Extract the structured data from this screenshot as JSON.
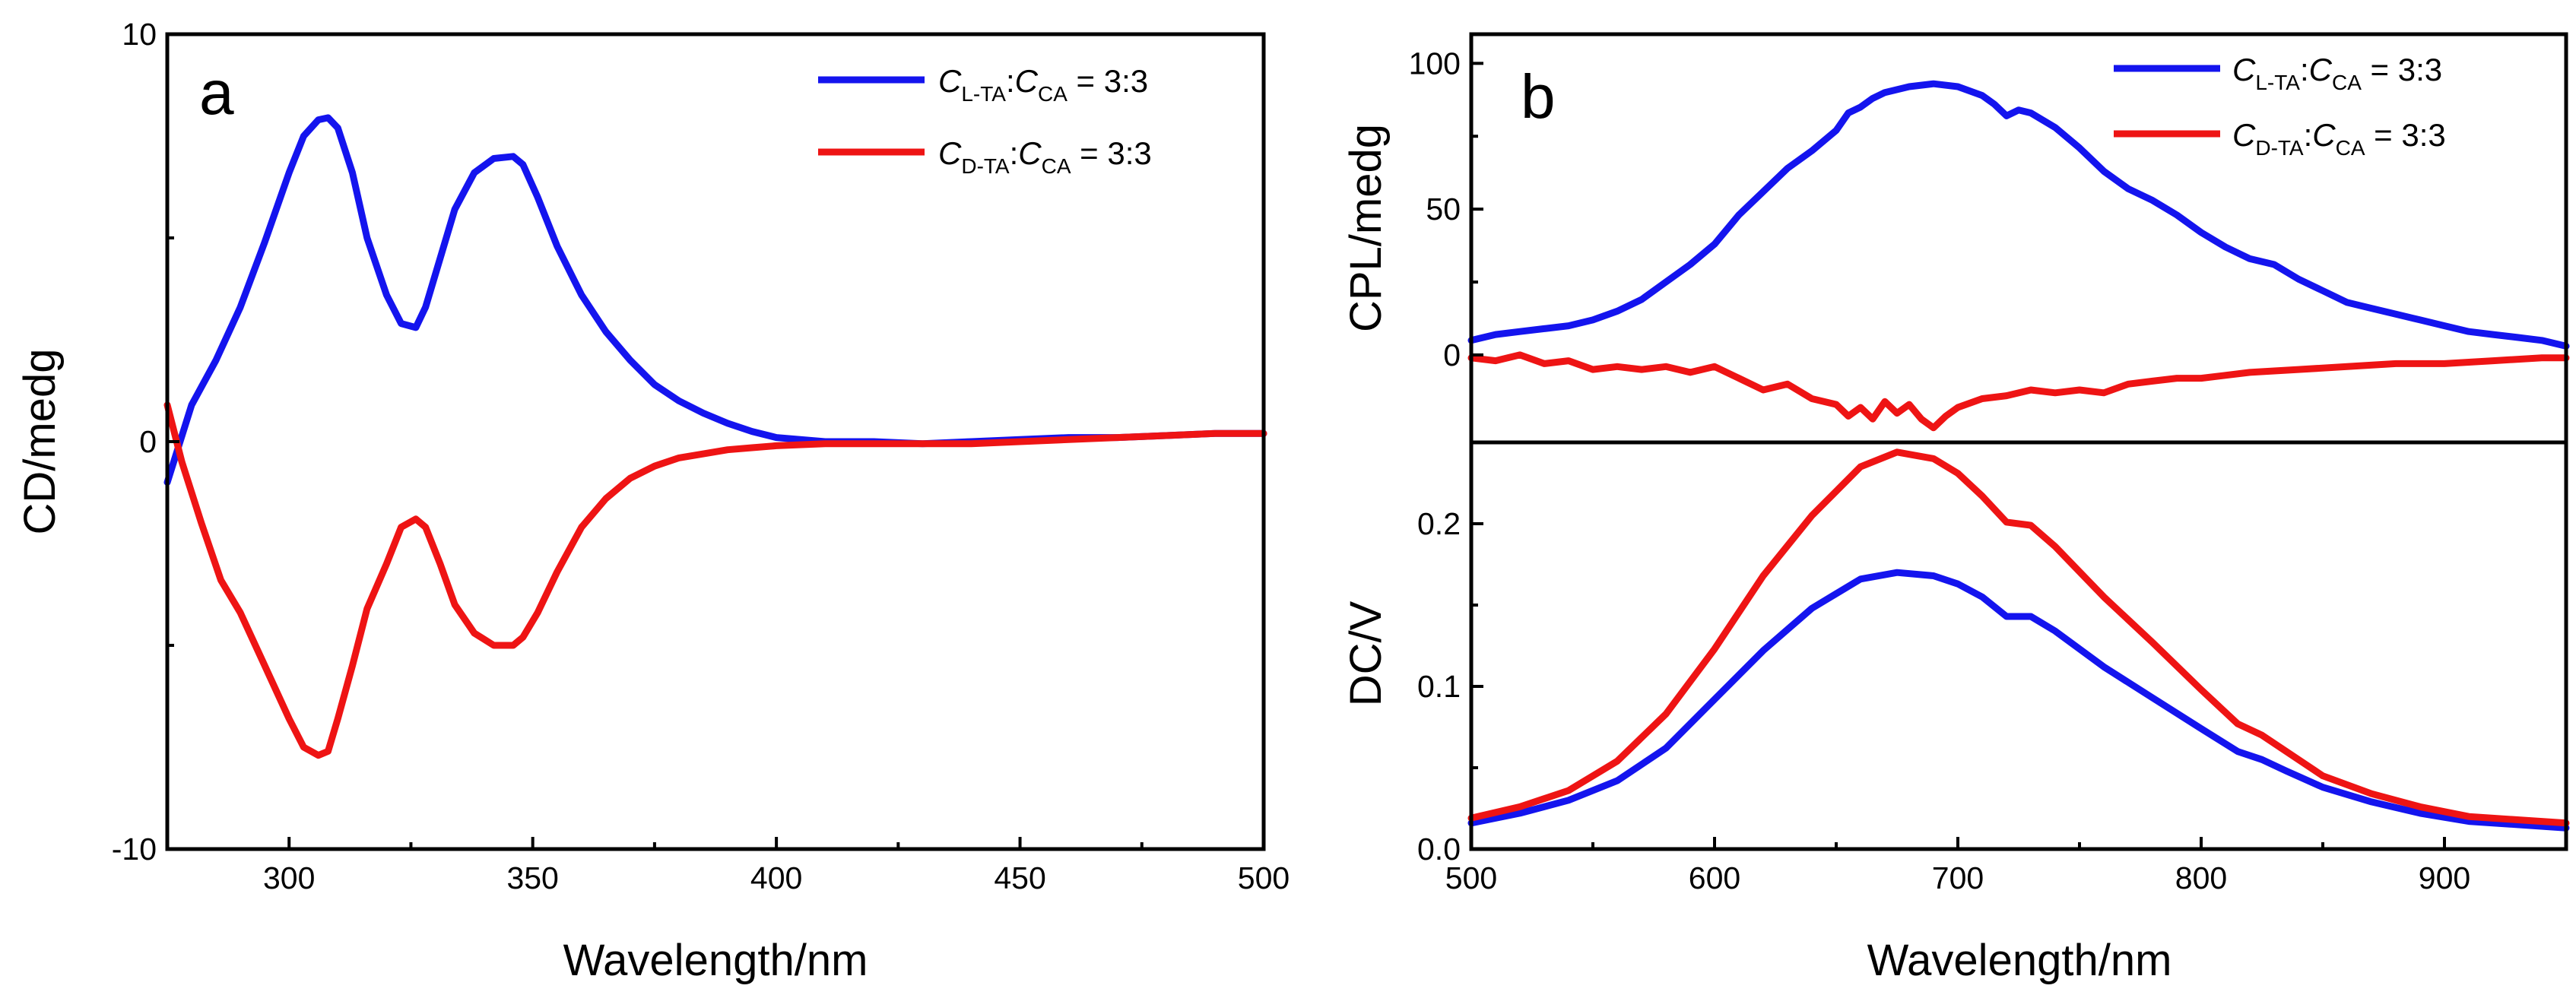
{
  "colors": {
    "blue": "#1414ee",
    "red": "#ee1414",
    "axis": "#000000"
  },
  "chart_data": [
    {
      "id": "a",
      "type": "line",
      "panel_label": "a",
      "xlabel": "Wavelength/nm",
      "ylabel": "CD/medg",
      "xlim": [
        275,
        500
      ],
      "ylim": [
        -10,
        10
      ],
      "xticks": [
        300,
        350,
        400,
        450,
        500
      ],
      "yticks": [
        -10,
        0,
        10
      ],
      "legend": [
        {
          "italic": "C",
          "sub": "L-TA",
          "colon": ":",
          "italic2": "C",
          "sub2": "CA",
          "rest": " = 3:3",
          "color": "#1414ee"
        },
        {
          "italic": "C",
          "sub": "D-TA",
          "colon": ":",
          "italic2": "C",
          "sub2": "CA",
          "rest": " = 3:3",
          "color": "#ee1414"
        }
      ],
      "series": [
        {
          "name": "CL-TA:CCA = 3:3",
          "color": "#1414ee",
          "x": [
            275,
            280,
            285,
            290,
            295,
            300,
            303,
            306,
            308,
            310,
            313,
            316,
            320,
            323,
            326,
            328,
            331,
            334,
            338,
            342,
            346,
            348,
            351,
            355,
            360,
            365,
            370,
            375,
            380,
            385,
            390,
            395,
            400,
            410,
            420,
            430,
            440,
            450,
            460,
            470,
            480,
            490,
            500
          ],
          "y": [
            -1.0,
            0.9,
            2.0,
            3.3,
            4.9,
            6.6,
            7.5,
            7.9,
            7.95,
            7.7,
            6.6,
            5.0,
            3.6,
            2.9,
            2.8,
            3.3,
            4.5,
            5.7,
            6.6,
            6.95,
            7.0,
            6.8,
            6.0,
            4.8,
            3.6,
            2.7,
            2.0,
            1.4,
            1.0,
            0.7,
            0.45,
            0.25,
            0.1,
            0.0,
            0.0,
            -0.05,
            0.0,
            0.05,
            0.1,
            0.1,
            0.15,
            0.2,
            0.2
          ]
        },
        {
          "name": "CD-TA:CCA = 3:3",
          "color": "#ee1414",
          "x": [
            275,
            278,
            282,
            286,
            290,
            295,
            300,
            303,
            306,
            308,
            310,
            313,
            316,
            320,
            323,
            326,
            328,
            331,
            334,
            338,
            342,
            346,
            348,
            351,
            355,
            360,
            365,
            370,
            375,
            380,
            385,
            390,
            395,
            400,
            410,
            420,
            430,
            440,
            450,
            460,
            470,
            480,
            490,
            500
          ],
          "y": [
            0.9,
            -0.5,
            -2.0,
            -3.4,
            -4.2,
            -5.5,
            -6.8,
            -7.5,
            -7.7,
            -7.6,
            -6.8,
            -5.5,
            -4.1,
            -3.0,
            -2.1,
            -1.9,
            -2.1,
            -3.0,
            -4.0,
            -4.7,
            -5.0,
            -5.0,
            -4.8,
            -4.2,
            -3.2,
            -2.1,
            -1.4,
            -0.9,
            -0.6,
            -0.4,
            -0.3,
            -0.2,
            -0.15,
            -0.1,
            -0.05,
            -0.05,
            -0.05,
            -0.05,
            0.0,
            0.05,
            0.1,
            0.15,
            0.2,
            0.2
          ]
        }
      ]
    },
    {
      "id": "b-top",
      "type": "line",
      "panel_label": "b",
      "xlabel": "",
      "ylabel": "CPL/medg",
      "xlim": [
        500,
        950
      ],
      "ylim": [
        -30,
        110
      ],
      "xticks": [
        500,
        600,
        700,
        800,
        900
      ],
      "yticks": [
        0,
        50,
        100
      ],
      "legend": [
        {
          "italic": "C",
          "sub": "L-TA",
          "colon": ":",
          "italic2": "C",
          "sub2": "CA",
          "rest": " = 3:3",
          "color": "#1414ee"
        },
        {
          "italic": "C",
          "sub": "D-TA",
          "colon": ":",
          "italic2": "C",
          "sub2": "CA",
          "rest": " = 3:3",
          "color": "#ee1414"
        }
      ],
      "series": [
        {
          "name": "CL-TA:CCA = 3:3",
          "color": "#1414ee",
          "x": [
            500,
            510,
            520,
            530,
            540,
            550,
            560,
            570,
            580,
            590,
            600,
            610,
            620,
            630,
            640,
            650,
            655,
            660,
            665,
            670,
            680,
            690,
            700,
            710,
            715,
            720,
            725,
            730,
            740,
            750,
            760,
            770,
            780,
            790,
            800,
            810,
            820,
            830,
            840,
            850,
            860,
            870,
            880,
            890,
            900,
            910,
            920,
            930,
            940,
            950
          ],
          "y": [
            5,
            7,
            8,
            9,
            10,
            12,
            15,
            19,
            25,
            31,
            38,
            48,
            56,
            64,
            70,
            77,
            83,
            85,
            88,
            90,
            92,
            93,
            92,
            89,
            86,
            82,
            84,
            83,
            78,
            71,
            63,
            57,
            53,
            48,
            42,
            37,
            33,
            31,
            26,
            22,
            18,
            16,
            14,
            12,
            10,
            8,
            7,
            6,
            5,
            3
          ]
        },
        {
          "name": "CD-TA:CCA = 3:3",
          "color": "#ee1414",
          "x": [
            500,
            510,
            520,
            530,
            540,
            550,
            560,
            570,
            580,
            590,
            600,
            610,
            620,
            630,
            640,
            650,
            655,
            660,
            665,
            670,
            675,
            680,
            685,
            690,
            695,
            700,
            710,
            720,
            730,
            740,
            750,
            760,
            770,
            780,
            790,
            800,
            820,
            840,
            860,
            880,
            900,
            920,
            940,
            950
          ],
          "y": [
            -1,
            -2,
            0,
            -3,
            -2,
            -5,
            -4,
            -5,
            -4,
            -6,
            -4,
            -8,
            -12,
            -10,
            -15,
            -17,
            -21,
            -18,
            -22,
            -16,
            -20,
            -17,
            -22,
            -25,
            -21,
            -18,
            -15,
            -14,
            -12,
            -13,
            -12,
            -13,
            -10,
            -9,
            -8,
            -8,
            -6,
            -5,
            -4,
            -3,
            -3,
            -2,
            -1,
            -1
          ]
        }
      ]
    },
    {
      "id": "b-bottom",
      "type": "line",
      "panel_label": "",
      "xlabel": "Wavelength/nm",
      "ylabel": "DC/V",
      "xlim": [
        500,
        950
      ],
      "ylim": [
        0,
        0.25
      ],
      "xticks": [
        500,
        600,
        700,
        800,
        900
      ],
      "yticks": [
        0.0,
        0.1,
        0.2
      ],
      "ytick_labels": [
        "0.0",
        "0.1",
        "0.2"
      ],
      "series": [
        {
          "name": "CL-TA:CCA = 3:3",
          "color": "#1414ee",
          "x": [
            500,
            520,
            540,
            560,
            580,
            600,
            620,
            640,
            660,
            675,
            690,
            700,
            710,
            720,
            730,
            740,
            760,
            780,
            800,
            815,
            825,
            835,
            850,
            870,
            890,
            910,
            930,
            950
          ],
          "y": [
            0.016,
            0.022,
            0.03,
            0.042,
            0.062,
            0.092,
            0.122,
            0.148,
            0.166,
            0.17,
            0.168,
            0.163,
            0.155,
            0.143,
            0.143,
            0.134,
            0.112,
            0.093,
            0.074,
            0.06,
            0.055,
            0.048,
            0.038,
            0.029,
            0.022,
            0.017,
            0.015,
            0.013
          ]
        },
        {
          "name": "CD-TA:CCA = 3:3",
          "color": "#ee1414",
          "x": [
            500,
            520,
            540,
            560,
            580,
            600,
            620,
            640,
            660,
            675,
            690,
            700,
            710,
            720,
            730,
            740,
            760,
            780,
            800,
            815,
            825,
            835,
            850,
            870,
            890,
            910,
            930,
            950
          ],
          "y": [
            0.019,
            0.026,
            0.036,
            0.054,
            0.083,
            0.123,
            0.168,
            0.205,
            0.235,
            0.244,
            0.24,
            0.231,
            0.217,
            0.201,
            0.199,
            0.186,
            0.155,
            0.127,
            0.098,
            0.077,
            0.07,
            0.06,
            0.045,
            0.034,
            0.026,
            0.02,
            0.018,
            0.016
          ]
        }
      ]
    }
  ]
}
